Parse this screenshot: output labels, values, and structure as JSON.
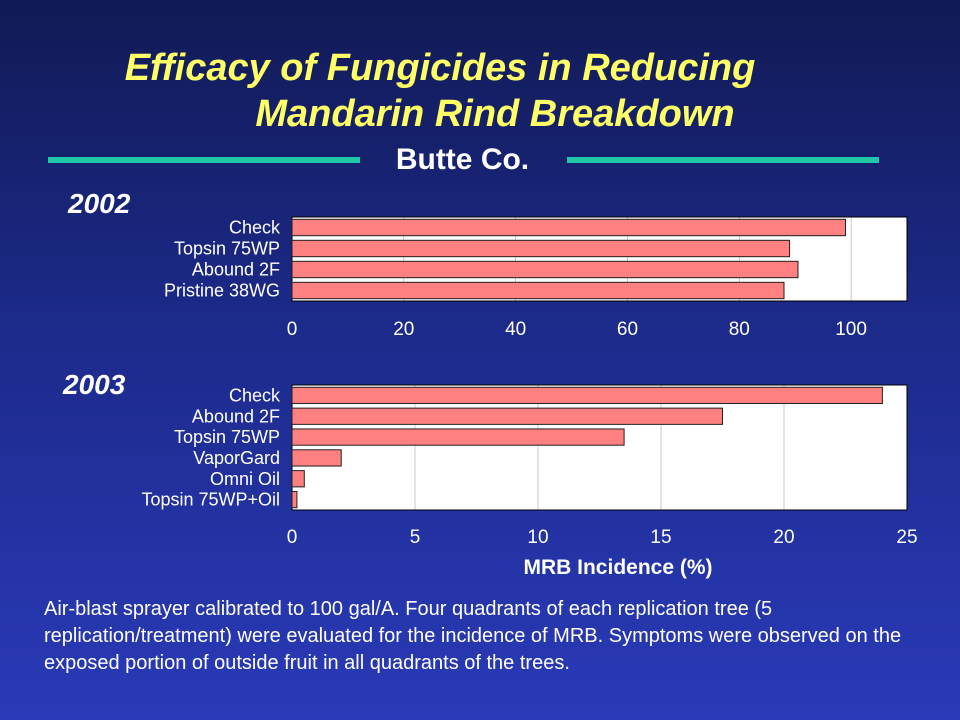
{
  "title": {
    "line1": "Efficacy of Fungicides in Reducing",
    "line2": "Mandarin Rind Breakdown"
  },
  "subtitle": "Butte Co.",
  "x_axis_label": "MRB Incidence (%)",
  "note": "Air-blast sprayer calibrated to 100 gal/A. Four quadrants of each replication tree (5 replication/treatment) were evaluated for the incidence of MRB. Symptoms were observed on the exposed portion of outside fruit in all quadrants of the trees.",
  "colors": {
    "bar_fill": "#ff8080",
    "bar_stroke": "#202020",
    "plot_bg": "#ffffff",
    "title": "#ffff66",
    "rule": "#20c8a8",
    "grid": "#000000"
  },
  "chart_data": [
    {
      "type": "bar",
      "orientation": "horizontal",
      "panel_label": "2002",
      "categories": [
        "Check",
        "Topsin 75WP",
        "Abound 2F",
        "Pristine 38WG"
      ],
      "values": [
        99,
        89,
        90.5,
        88
      ],
      "xlim": [
        0,
        110
      ],
      "xticks": [
        0,
        20,
        40,
        60,
        80,
        100
      ],
      "grid": true
    },
    {
      "type": "bar",
      "orientation": "horizontal",
      "panel_label": "2003",
      "categories": [
        "Check",
        "Abound 2F",
        "Topsin 75WP",
        "VaporGard",
        "Omni Oil",
        "Topsin 75WP+Oil"
      ],
      "values": [
        24,
        17.5,
        13.5,
        2,
        0.5,
        0.2
      ],
      "xlim": [
        0,
        25
      ],
      "xticks": [
        0,
        5,
        10,
        15,
        20,
        25
      ],
      "xlabel": "MRB Incidence (%)",
      "grid": true
    }
  ]
}
